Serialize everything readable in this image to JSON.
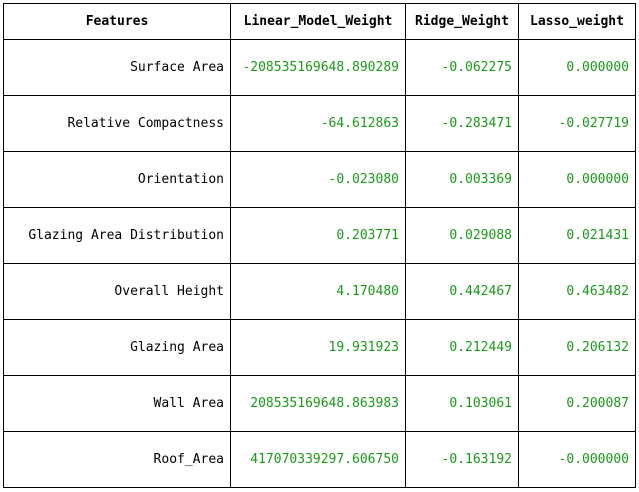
{
  "table": {
    "headers": [
      "Features",
      "Linear_Model_Weight",
      "Ridge_Weight",
      "Lasso_weight"
    ],
    "rows": [
      [
        "Surface Area",
        "-208535169648.890289",
        "-0.062275",
        "0.000000"
      ],
      [
        "Relative Compactness",
        "-64.612863",
        "-0.283471",
        "-0.027719"
      ],
      [
        "Orientation",
        "-0.023080",
        "0.003369",
        "0.000000"
      ],
      [
        "Glazing Area Distribution",
        "0.203771",
        "0.029088",
        "0.021431"
      ],
      [
        "Overall Height",
        "4.170480",
        "0.442467",
        "0.463482"
      ],
      [
        "Glazing Area",
        "19.931923",
        "0.212449",
        "0.206132"
      ],
      [
        "Wall Area",
        "208535169648.863983",
        "0.103061",
        "0.200087"
      ],
      [
        "Roof_Area",
        "417070339297.606750",
        "-0.163192",
        "-0.000000"
      ]
    ]
  },
  "colors": {
    "value_text": "#1a9a1a",
    "label_text": "#000000",
    "border": "#000000"
  }
}
